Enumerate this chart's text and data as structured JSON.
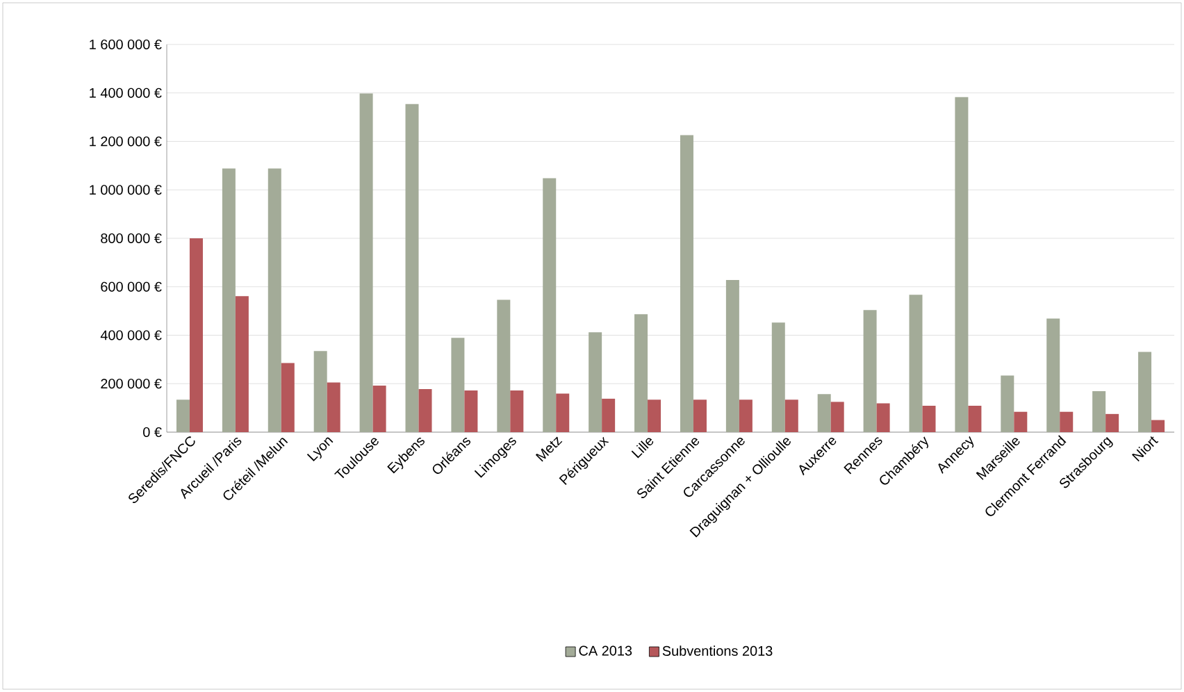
{
  "chart_data": {
    "type": "bar",
    "categories": [
      "Seredis/FNCC",
      "Arcueil /Paris",
      "Créteil /Melun",
      "Lyon",
      "Toulouse",
      "Eybens",
      "Orléans",
      "Limoges",
      "Metz",
      "Périgueux",
      "Lille",
      "Saint Etienne",
      "Carcassonne",
      "Draguignan + Ollioulle",
      "Auxerre",
      "Rennes",
      "Chambéry",
      "Annecy",
      "Marseille",
      "Clermont Ferrand",
      "Strasbourg",
      "Niort"
    ],
    "series": [
      {
        "name": "CA 2013",
        "color": "#a3ab98",
        "values": [
          134000,
          1088000,
          1088000,
          335000,
          1398000,
          1354000,
          389000,
          546000,
          1048000,
          412000,
          487000,
          1226000,
          628000,
          452000,
          157000,
          504000,
          567000,
          1383000,
          234000,
          469000,
          169000,
          331000
        ]
      },
      {
        "name": "Subventions 2013",
        "color": "#b5575a",
        "values": [
          800000,
          561000,
          285000,
          205000,
          192000,
          178000,
          172000,
          172000,
          159000,
          138000,
          134000,
          134000,
          134000,
          134000,
          125000,
          119000,
          109000,
          109000,
          84000,
          84000,
          75000,
          50000
        ]
      }
    ],
    "ylim": [
      0,
      1600000
    ],
    "yticks": [
      {
        "value": 0,
        "label": "0 €"
      },
      {
        "value": 200000,
        "label": "200 000 €"
      },
      {
        "value": 400000,
        "label": "400 000 €"
      },
      {
        "value": 600000,
        "label": "600 000 €"
      },
      {
        "value": 800000,
        "label": "800 000 €"
      },
      {
        "value": 1000000,
        "label": "1 000 000 €"
      },
      {
        "value": 1200000,
        "label": "1 200 000 €"
      },
      {
        "value": 1400000,
        "label": "1 400 000 €"
      },
      {
        "value": 1600000,
        "label": "1 600 000 €"
      }
    ],
    "grid": "y",
    "legend": "bottom"
  }
}
